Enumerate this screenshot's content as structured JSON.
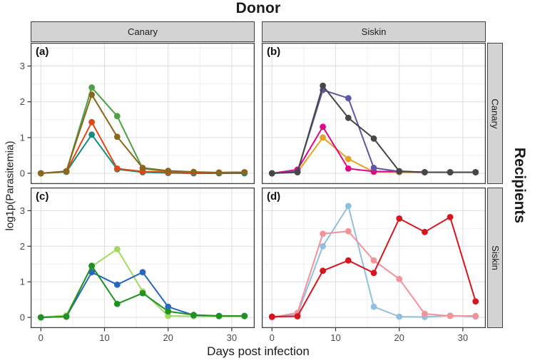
{
  "title": "Donor",
  "right_title": "Recipients",
  "x_axis": {
    "label": "Days post infection"
  },
  "y_axis": {
    "label": "log1p(Parasitemia)"
  },
  "facets": {
    "columns": [
      "Canary",
      "Siskin"
    ],
    "rows": [
      "Canary",
      "Siskin"
    ]
  },
  "chart_data": {
    "type": "line",
    "x": [
      0,
      4,
      8,
      12,
      16,
      20,
      24,
      28,
      32
    ],
    "xlim": [
      -1.6,
      33.6
    ],
    "ylim": [
      -0.3,
      3.65
    ],
    "x_ticks": [
      0,
      10,
      20,
      30
    ],
    "y_ticks": [
      0,
      1,
      2,
      3
    ],
    "minor_x": [
      5,
      15,
      25
    ],
    "minor_y": [
      0.5,
      1.5,
      2.5,
      3.5
    ],
    "grid": "on",
    "legend": "none",
    "panels": [
      {
        "id": "a",
        "label": "(a)",
        "donor": "Canary",
        "recipient": "Canary",
        "series": [
          {
            "name": "green",
            "color": "#4ca143",
            "values": [
              0,
              0.05,
              2.4,
              1.6,
              0.13,
              0.05,
              0.03,
              0.02,
              0.03
            ]
          },
          {
            "name": "teal",
            "color": "#128d7f",
            "values": [
              0,
              0.04,
              1.08,
              0.11,
              0.03,
              0.01,
              0.0,
              0.0,
              0.0
            ]
          },
          {
            "name": "orange-red",
            "color": "#dd4814",
            "values": [
              0,
              0.05,
              1.43,
              0.13,
              0.05,
              0.03,
              0.02,
              0.02,
              0.03
            ]
          },
          {
            "name": "olive-brown",
            "color": "#8a671c",
            "values": [
              0,
              0.06,
              2.2,
              1.02,
              0.15,
              0.07,
              0.04,
              0.02,
              0.03
            ]
          }
        ]
      },
      {
        "id": "b",
        "label": "(b)",
        "donor": "Siskin",
        "recipient": "Canary",
        "series": [
          {
            "name": "amber",
            "color": "#e5a41f",
            "values": [
              0,
              0.03,
              1.0,
              0.4,
              0.04,
              0.03,
              0.03,
              0.03,
              0.03
            ]
          },
          {
            "name": "magenta",
            "color": "#e00687",
            "values": [
              0,
              0.1,
              1.3,
              0.13,
              0.05,
              0.05,
              0.03,
              0.03,
              0.03
            ]
          },
          {
            "name": "slate-purple",
            "color": "#5c58a5",
            "values": [
              0,
              0.05,
              2.33,
              2.1,
              0.15,
              0.05,
              0.03,
              0.03,
              0.03
            ]
          },
          {
            "name": "dark-gray",
            "color": "#474747",
            "values": [
              0,
              0.03,
              2.45,
              1.55,
              0.97,
              0.06,
              0.03,
              0.03,
              0.03
            ]
          }
        ]
      },
      {
        "id": "c",
        "label": "(c)",
        "donor": "Canary",
        "recipient": "Siskin",
        "series": [
          {
            "name": "light-green",
            "color": "#a2d964",
            "values": [
              0,
              0.06,
              1.43,
              1.92,
              0.73,
              0.04,
              0.03,
              0.03,
              0.03
            ]
          },
          {
            "name": "blue",
            "color": "#2767bf",
            "values": [
              0,
              0.02,
              1.27,
              0.92,
              1.27,
              0.3,
              0.06,
              0.04,
              0.04
            ]
          },
          {
            "name": "dark-green",
            "color": "#209222",
            "values": [
              0,
              0.02,
              1.45,
              0.38,
              0.68,
              0.17,
              0.07,
              0.04,
              0.04
            ]
          }
        ]
      },
      {
        "id": "d",
        "label": "(d)",
        "donor": "Siskin",
        "recipient": "Siskin",
        "series": [
          {
            "name": "light-blue",
            "color": "#90c0e0",
            "values": [
              0.0,
              0.08,
              2.0,
              3.13,
              0.3,
              0.02,
              0.01,
              0.05,
              0.02
            ]
          },
          {
            "name": "salmon-pink",
            "color": "#f4929a",
            "values": [
              0.0,
              0.13,
              2.35,
              2.42,
              1.6,
              1.08,
              0.1,
              0.04,
              0.04
            ]
          },
          {
            "name": "red",
            "color": "#d6161c",
            "values": [
              0.02,
              0.03,
              1.31,
              1.6,
              1.25,
              2.78,
              2.4,
              2.82,
              0.45
            ]
          }
        ]
      }
    ]
  },
  "style": {
    "strip_bg": "#d3d3d3",
    "panel_border": "#3f3f3f",
    "grid_major": "#e0e0e0",
    "grid_minor": "#f0f0f0",
    "tick_color": "#333333",
    "tick_label_color": "#4a4a4a"
  }
}
